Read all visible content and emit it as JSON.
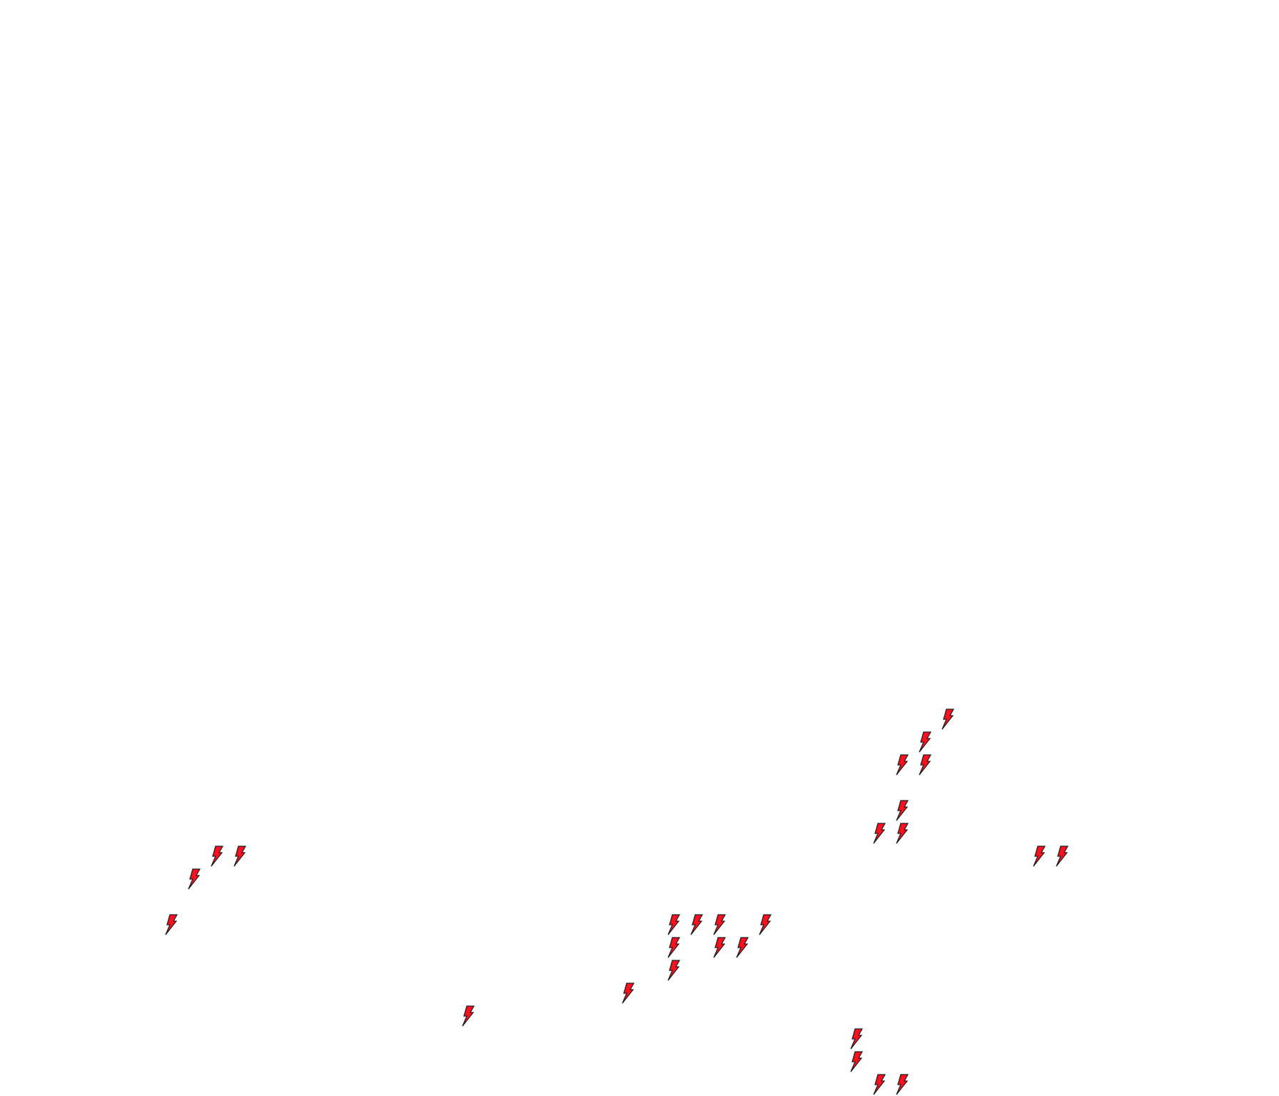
{
  "canvas": {
    "background": "#ffffff",
    "icon": "lightning-bolt-icon",
    "icon_fill": "#ff1020",
    "icon_stroke": "#1a1a1a"
  }
}
